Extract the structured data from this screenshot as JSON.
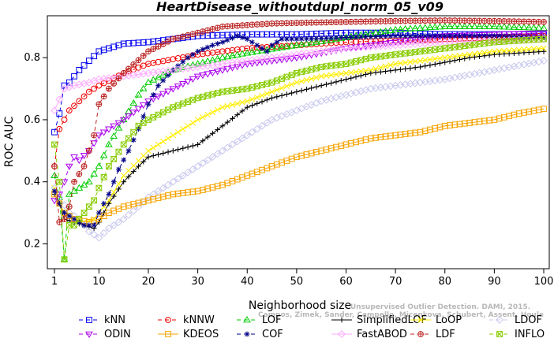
{
  "chart_data": {
    "type": "line",
    "title": "HeartDisease_withoutdupl_norm_05_v09",
    "xlabel": "Neighborhood size",
    "ylabel": "ROC AUC",
    "xlim": [
      1,
      100
    ],
    "ylim": [
      0.12,
      0.935
    ],
    "xticks": [
      1,
      10,
      20,
      30,
      40,
      50,
      60,
      70,
      80,
      90,
      100
    ],
    "yticks": [
      0.2,
      0.4,
      0.6,
      0.8
    ],
    "ytick_labels": [
      "0.2",
      "0.4",
      "0.6",
      "0.8"
    ],
    "grid": false,
    "legend_position": "bottom",
    "watermark": {
      "line1": "Unsupervised Outlier Detection. DAMI, 2015.",
      "line2": "Campos, Zimek, Sander, Campello, Micenkova, Schubert, Assent, Houle"
    },
    "series": [
      {
        "name": "kNN",
        "color": "#0000ee",
        "marker": "square",
        "dash": "5,4",
        "knots": [
          [
            1,
            0.56
          ],
          [
            2,
            0.62
          ],
          [
            3,
            0.71
          ],
          [
            4,
            0.72
          ],
          [
            6,
            0.76
          ],
          [
            8,
            0.79
          ],
          [
            10,
            0.82
          ],
          [
            15,
            0.845
          ],
          [
            20,
            0.85
          ],
          [
            25,
            0.86
          ],
          [
            30,
            0.87
          ],
          [
            40,
            0.875
          ],
          [
            50,
            0.875
          ],
          [
            60,
            0.88
          ],
          [
            70,
            0.88
          ],
          [
            80,
            0.875
          ],
          [
            90,
            0.875
          ],
          [
            100,
            0.875
          ]
        ]
      },
      {
        "name": "kNNW",
        "color": "#ee0000",
        "marker": "circle",
        "dash": "5,4",
        "knots": [
          [
            1,
            0.45
          ],
          [
            2,
            0.57
          ],
          [
            4,
            0.63
          ],
          [
            6,
            0.66
          ],
          [
            8,
            0.69
          ],
          [
            10,
            0.71
          ],
          [
            15,
            0.75
          ],
          [
            20,
            0.78
          ],
          [
            25,
            0.795
          ],
          [
            30,
            0.81
          ],
          [
            35,
            0.82
          ],
          [
            40,
            0.83
          ],
          [
            45,
            0.835
          ],
          [
            50,
            0.84
          ],
          [
            60,
            0.85
          ],
          [
            70,
            0.855
          ],
          [
            80,
            0.86
          ],
          [
            90,
            0.865
          ],
          [
            100,
            0.87
          ]
        ]
      },
      {
        "name": "LOF",
        "color": "#00cc00",
        "marker": "triangle-up",
        "dash": "5,4",
        "knots": [
          [
            1,
            0.42
          ],
          [
            2,
            0.35
          ],
          [
            3,
            0.15
          ],
          [
            4,
            0.36
          ],
          [
            6,
            0.38
          ],
          [
            8,
            0.4
          ],
          [
            10,
            0.45
          ],
          [
            12,
            0.52
          ],
          [
            15,
            0.6
          ],
          [
            18,
            0.68
          ],
          [
            20,
            0.72
          ],
          [
            25,
            0.76
          ],
          [
            30,
            0.78
          ],
          [
            35,
            0.8
          ],
          [
            40,
            0.815
          ],
          [
            50,
            0.84
          ],
          [
            60,
            0.865
          ],
          [
            70,
            0.89
          ],
          [
            80,
            0.9
          ],
          [
            90,
            0.9
          ],
          [
            100,
            0.895
          ]
        ]
      },
      {
        "name": "SimplifiedLOF",
        "color": "#000000",
        "marker": "plus",
        "dash": "",
        "knots": [
          [
            1,
            0.36
          ],
          [
            2,
            0.33
          ],
          [
            3,
            0.28
          ],
          [
            5,
            0.27
          ],
          [
            7,
            0.26
          ],
          [
            9,
            0.25
          ],
          [
            10,
            0.27
          ],
          [
            12,
            0.33
          ],
          [
            15,
            0.4
          ],
          [
            18,
            0.45
          ],
          [
            20,
            0.48
          ],
          [
            25,
            0.5
          ],
          [
            30,
            0.52
          ],
          [
            35,
            0.58
          ],
          [
            40,
            0.64
          ],
          [
            45,
            0.67
          ],
          [
            50,
            0.69
          ],
          [
            55,
            0.71
          ],
          [
            60,
            0.73
          ],
          [
            65,
            0.75
          ],
          [
            70,
            0.76
          ],
          [
            75,
            0.77
          ],
          [
            80,
            0.785
          ],
          [
            85,
            0.8
          ],
          [
            90,
            0.81
          ],
          [
            95,
            0.815
          ],
          [
            100,
            0.82
          ]
        ]
      },
      {
        "name": "LoOP",
        "color": "#ffee00",
        "marker": "x",
        "dash": "",
        "knots": [
          [
            1,
            0.38
          ],
          [
            2,
            0.33
          ],
          [
            3,
            0.3
          ],
          [
            5,
            0.28
          ],
          [
            7,
            0.27
          ],
          [
            9,
            0.28
          ],
          [
            10,
            0.3
          ],
          [
            12,
            0.34
          ],
          [
            15,
            0.42
          ],
          [
            20,
            0.5
          ],
          [
            25,
            0.55
          ],
          [
            30,
            0.6
          ],
          [
            35,
            0.64
          ],
          [
            40,
            0.66
          ],
          [
            45,
            0.69
          ],
          [
            50,
            0.72
          ],
          [
            55,
            0.74
          ],
          [
            60,
            0.75
          ],
          [
            65,
            0.76
          ],
          [
            70,
            0.78
          ],
          [
            75,
            0.79
          ],
          [
            80,
            0.8
          ],
          [
            85,
            0.81
          ],
          [
            90,
            0.82
          ],
          [
            95,
            0.825
          ],
          [
            100,
            0.83
          ]
        ]
      },
      {
        "name": "LDOF",
        "color": "#c8c8ee",
        "marker": "diamond",
        "dash": "5,4",
        "knots": [
          [
            1,
            0.38
          ],
          [
            2,
            0.35
          ],
          [
            4,
            0.3
          ],
          [
            6,
            0.28
          ],
          [
            8,
            0.24
          ],
          [
            10,
            0.22
          ],
          [
            12,
            0.25
          ],
          [
            15,
            0.28
          ],
          [
            18,
            0.32
          ],
          [
            20,
            0.35
          ],
          [
            25,
            0.4
          ],
          [
            30,
            0.45
          ],
          [
            35,
            0.5
          ],
          [
            40,
            0.55
          ],
          [
            45,
            0.6
          ],
          [
            50,
            0.63
          ],
          [
            55,
            0.66
          ],
          [
            60,
            0.68
          ],
          [
            65,
            0.7
          ],
          [
            70,
            0.71
          ],
          [
            75,
            0.72
          ],
          [
            80,
            0.73
          ],
          [
            85,
            0.745
          ],
          [
            90,
            0.76
          ],
          [
            95,
            0.775
          ],
          [
            100,
            0.79
          ]
        ]
      },
      {
        "name": "ODIN",
        "color": "#aa00ee",
        "marker": "triangle-down",
        "dash": "5,4",
        "knots": [
          [
            1,
            0.34
          ],
          [
            2,
            0.36
          ],
          [
            3,
            0.4
          ],
          [
            4,
            0.45
          ],
          [
            5,
            0.48
          ],
          [
            6,
            0.47
          ],
          [
            8,
            0.5
          ],
          [
            10,
            0.55
          ],
          [
            12,
            0.57
          ],
          [
            15,
            0.6
          ],
          [
            20,
            0.66
          ],
          [
            25,
            0.7
          ],
          [
            30,
            0.74
          ],
          [
            35,
            0.76
          ],
          [
            40,
            0.78
          ],
          [
            45,
            0.79
          ],
          [
            50,
            0.8
          ],
          [
            60,
            0.83
          ],
          [
            70,
            0.85
          ],
          [
            80,
            0.87
          ],
          [
            90,
            0.875
          ],
          [
            100,
            0.88
          ]
        ]
      },
      {
        "name": "KDEOS",
        "color": "#f5a300",
        "marker": "square",
        "dash": "",
        "knots": [
          [
            1,
            0.36
          ],
          [
            3,
            0.3
          ],
          [
            5,
            0.28
          ],
          [
            8,
            0.27
          ],
          [
            10,
            0.28
          ],
          [
            12,
            0.3
          ],
          [
            15,
            0.32
          ],
          [
            20,
            0.34
          ],
          [
            25,
            0.36
          ],
          [
            30,
            0.37
          ],
          [
            35,
            0.39
          ],
          [
            40,
            0.42
          ],
          [
            45,
            0.45
          ],
          [
            50,
            0.48
          ],
          [
            55,
            0.5
          ],
          [
            60,
            0.52
          ],
          [
            65,
            0.54
          ],
          [
            70,
            0.55
          ],
          [
            75,
            0.56
          ],
          [
            80,
            0.58
          ],
          [
            85,
            0.59
          ],
          [
            90,
            0.6
          ],
          [
            95,
            0.62
          ],
          [
            100,
            0.635
          ]
        ]
      },
      {
        "name": "COF",
        "color": "#000088",
        "marker": "asterisk",
        "dash": "5,4",
        "knots": [
          [
            1,
            0.37
          ],
          [
            2,
            0.33
          ],
          [
            3,
            0.3
          ],
          [
            5,
            0.28
          ],
          [
            7,
            0.26
          ],
          [
            9,
            0.26
          ],
          [
            10,
            0.3
          ],
          [
            12,
            0.36
          ],
          [
            14,
            0.44
          ],
          [
            16,
            0.5
          ],
          [
            18,
            0.57
          ],
          [
            20,
            0.65
          ],
          [
            22,
            0.71
          ],
          [
            25,
            0.76
          ],
          [
            28,
            0.8
          ],
          [
            30,
            0.82
          ],
          [
            33,
            0.84
          ],
          [
            35,
            0.85
          ],
          [
            38,
            0.87
          ],
          [
            40,
            0.86
          ],
          [
            42,
            0.84
          ],
          [
            44,
            0.82
          ],
          [
            45,
            0.84
          ],
          [
            47,
            0.86
          ],
          [
            50,
            0.86
          ],
          [
            60,
            0.865
          ],
          [
            70,
            0.87
          ],
          [
            80,
            0.87
          ],
          [
            90,
            0.87
          ],
          [
            100,
            0.865
          ]
        ]
      },
      {
        "name": "FastABOD",
        "color": "#ffaaff",
        "marker": "diamond",
        "dash": "",
        "knots": [
          [
            1,
            0.63
          ],
          [
            3,
            0.7
          ],
          [
            5,
            0.71
          ],
          [
            8,
            0.72
          ],
          [
            10,
            0.73
          ],
          [
            15,
            0.74
          ],
          [
            20,
            0.75
          ],
          [
            25,
            0.76
          ],
          [
            30,
            0.77
          ],
          [
            35,
            0.78
          ],
          [
            40,
            0.79
          ],
          [
            45,
            0.8
          ],
          [
            50,
            0.81
          ],
          [
            60,
            0.83
          ],
          [
            70,
            0.84
          ],
          [
            80,
            0.85
          ],
          [
            90,
            0.855
          ],
          [
            100,
            0.86
          ]
        ]
      },
      {
        "name": "LDF",
        "color": "#bb2222",
        "marker": "circle-plus",
        "dash": "5,4",
        "knots": [
          [
            1,
            0.45
          ],
          [
            2,
            0.27
          ],
          [
            3,
            0.28
          ],
          [
            4,
            0.32
          ],
          [
            5,
            0.4
          ],
          [
            7,
            0.45
          ],
          [
            9,
            0.55
          ],
          [
            10,
            0.65
          ],
          [
            12,
            0.7
          ],
          [
            15,
            0.75
          ],
          [
            20,
            0.82
          ],
          [
            25,
            0.86
          ],
          [
            30,
            0.88
          ],
          [
            35,
            0.9
          ],
          [
            40,
            0.905
          ],
          [
            45,
            0.91
          ],
          [
            50,
            0.912
          ],
          [
            60,
            0.915
          ],
          [
            70,
            0.918
          ],
          [
            80,
            0.92
          ],
          [
            90,
            0.918
          ],
          [
            100,
            0.915
          ]
        ]
      },
      {
        "name": "INFLO",
        "color": "#88cc00",
        "marker": "square-x",
        "dash": "5,4",
        "knots": [
          [
            1,
            0.52
          ],
          [
            2,
            0.4
          ],
          [
            3,
            0.15
          ],
          [
            4,
            0.26
          ],
          [
            5,
            0.26
          ],
          [
            7,
            0.3
          ],
          [
            9,
            0.34
          ],
          [
            10,
            0.38
          ],
          [
            12,
            0.45
          ],
          [
            15,
            0.52
          ],
          [
            18,
            0.58
          ],
          [
            20,
            0.6
          ],
          [
            25,
            0.64
          ],
          [
            30,
            0.67
          ],
          [
            35,
            0.69
          ],
          [
            40,
            0.7
          ],
          [
            45,
            0.72
          ],
          [
            50,
            0.75
          ],
          [
            55,
            0.77
          ],
          [
            60,
            0.78
          ],
          [
            65,
            0.8
          ],
          [
            70,
            0.81
          ],
          [
            80,
            0.83
          ],
          [
            90,
            0.85
          ],
          [
            100,
            0.86
          ]
        ]
      }
    ]
  }
}
